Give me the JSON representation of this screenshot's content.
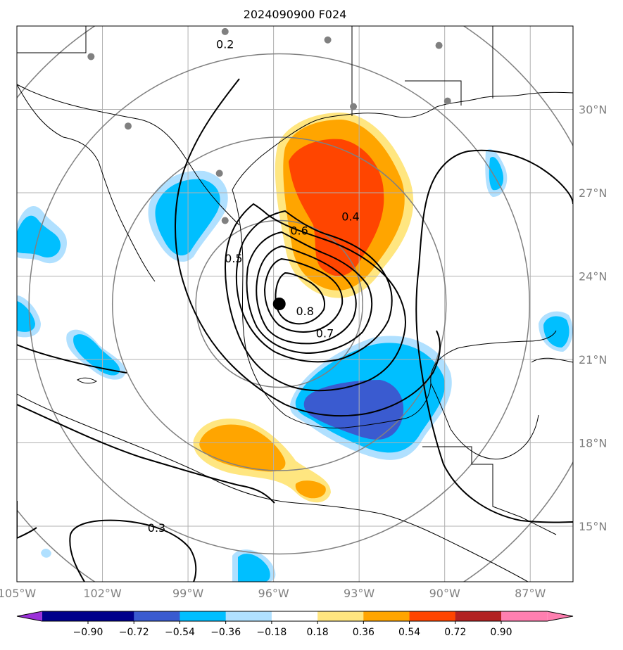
{
  "title": "2024090900 F024",
  "map": {
    "lon_range": [
      -105.0,
      -85.5
    ],
    "lat_range": [
      13.0,
      33.0
    ],
    "lat_ticks": [
      {
        "value": 30,
        "label": "30°N"
      },
      {
        "value": 27,
        "label": "27°N"
      },
      {
        "value": 24,
        "label": "24°N"
      },
      {
        "value": 21,
        "label": "21°N"
      },
      {
        "value": 18,
        "label": "18°N"
      },
      {
        "value": 15,
        "label": "15°N"
      }
    ],
    "lon_ticks": [
      {
        "value": -105,
        "label": "105°W"
      },
      {
        "value": -102,
        "label": "102°W"
      },
      {
        "value": -99,
        "label": "99°W"
      },
      {
        "value": -96,
        "label": "96°W"
      },
      {
        "value": -93,
        "label": "93°W"
      },
      {
        "value": -90,
        "label": "90°W"
      },
      {
        "value": -87,
        "label": "87°W"
      }
    ],
    "storm_center": {
      "lon": -95.8,
      "lat": 23.0
    },
    "range_rings_deg": [
      3,
      6,
      9,
      12
    ],
    "stations": [
      {
        "lon": -97.7,
        "lat": 32.8
      },
      {
        "lon": -94.1,
        "lat": 32.5
      },
      {
        "lon": -90.2,
        "lat": 32.3
      },
      {
        "lon": -102.4,
        "lat": 31.9
      },
      {
        "lon": -89.9,
        "lat": 30.3
      },
      {
        "lon": -93.2,
        "lat": 30.1
      },
      {
        "lon": -101.1,
        "lat": 29.4
      },
      {
        "lon": -97.9,
        "lat": 27.7
      },
      {
        "lon": -97.7,
        "lat": 26.0
      }
    ],
    "contour_labels": [
      {
        "text": "0.2",
        "lon": -97.7,
        "lat": 32.2
      },
      {
        "text": "0.4",
        "lon": -93.3,
        "lat": 26.0
      },
      {
        "text": "0.6",
        "lon": -95.1,
        "lat": 25.5
      },
      {
        "text": "0.5",
        "lon": -97.4,
        "lat": 24.5
      },
      {
        "text": "0.8",
        "lon": -94.9,
        "lat": 22.6
      },
      {
        "text": "0.7",
        "lon": -94.2,
        "lat": 21.8
      },
      {
        "text": "0.3",
        "lon": -100.1,
        "lat": 14.8
      }
    ],
    "colors": {
      "neg_extreme": "#9b30d9",
      "neg_090_072": "#00008b",
      "neg_072_054": "#3a5bd0",
      "neg_054_036": "#00bfff",
      "neg_036_018": "#b0e0ff",
      "neutral": "#ffffff",
      "pos_018_036": "#ffe680",
      "pos_036_054": "#ffa500",
      "pos_054_072": "#ff4500",
      "pos_072_090": "#b22222",
      "pos_extreme": "#ff7fb0"
    }
  },
  "colorbar": {
    "labels": [
      "−0.90",
      "−0.72",
      "−0.54",
      "−0.36",
      "−0.18",
      "0.18",
      "0.36",
      "0.54",
      "0.72",
      "0.90"
    ],
    "colors": [
      "#00008b",
      "#3a5bd0",
      "#00bfff",
      "#b0e0ff",
      "#ffffff",
      "#ffe680",
      "#ffa500",
      "#ff4500",
      "#b22222"
    ],
    "under_color": "#9b30d9",
    "over_color": "#ff7fb0"
  }
}
